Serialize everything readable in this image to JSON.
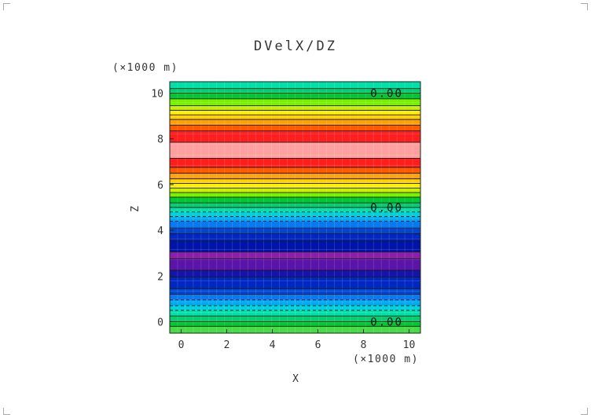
{
  "chart_data": {
    "type": "heatmap",
    "title": "DVelX/DZ",
    "xlabel": "X",
    "ylabel": "Z",
    "x_unit": "(×1000 m)",
    "y_unit": "(×1000 m)",
    "xlim": [
      -0.5,
      10.5
    ],
    "ylim": [
      -0.5,
      10.5
    ],
    "xticks": [
      "0",
      "2",
      "4",
      "6",
      "8",
      "10"
    ],
    "yticks": [
      "0",
      "2",
      "4",
      "6",
      "8",
      "10"
    ],
    "grid": true,
    "contour_labels": [
      {
        "text": "0.00",
        "x": 8.3,
        "y": 10.0
      },
      {
        "text": "0.00",
        "x": 8.3,
        "y": 5.0
      },
      {
        "text": "0.00",
        "x": 8.3,
        "y": 0.0
      }
    ],
    "bands": [
      {
        "z0": -0.5,
        "z1": -0.2,
        "color": "#46dc46"
      },
      {
        "z0": -0.2,
        "z1": 0.0,
        "color": "#00c832"
      },
      {
        "z0": 0.0,
        "z1": 0.25,
        "color": "#00d070"
      },
      {
        "z0": 0.25,
        "z1": 0.5,
        "color": "#00e0a8"
      },
      {
        "z0": 0.5,
        "z1": 0.7,
        "color": "#00d2dc"
      },
      {
        "z0": 0.7,
        "z1": 0.95,
        "color": "#00aaf0"
      },
      {
        "z0": 0.95,
        "z1": 1.2,
        "color": "#0a78f0"
      },
      {
        "z0": 1.2,
        "z1": 1.45,
        "color": "#0046d2"
      },
      {
        "z0": 1.45,
        "z1": 1.95,
        "color": "#0028c0"
      },
      {
        "z0": 1.95,
        "z1": 2.25,
        "color": "#1414aa"
      },
      {
        "z0": 2.25,
        "z1": 2.75,
        "color": "#5a14aa"
      },
      {
        "z0": 2.75,
        "z1": 3.05,
        "color": "#8c1eaa"
      },
      {
        "z0": 3.05,
        "z1": 3.55,
        "color": "#0014aa"
      },
      {
        "z0": 3.55,
        "z1": 3.85,
        "color": "#0028c0"
      },
      {
        "z0": 3.85,
        "z1": 4.1,
        "color": "#0046d2"
      },
      {
        "z0": 4.1,
        "z1": 4.4,
        "color": "#0a78f0"
      },
      {
        "z0": 4.4,
        "z1": 4.6,
        "color": "#00aaf0"
      },
      {
        "z0": 4.6,
        "z1": 4.8,
        "color": "#00d2dc"
      },
      {
        "z0": 4.8,
        "z1": 5.0,
        "color": "#00e0a8"
      },
      {
        "z0": 5.0,
        "z1": 5.2,
        "color": "#00d070"
      },
      {
        "z0": 5.2,
        "z1": 5.45,
        "color": "#00c832"
      },
      {
        "z0": 5.45,
        "z1": 5.65,
        "color": "#78f000"
      },
      {
        "z0": 5.65,
        "z1": 5.85,
        "color": "#c8f000"
      },
      {
        "z0": 5.85,
        "z1": 6.05,
        "color": "#fff000"
      },
      {
        "z0": 6.05,
        "z1": 6.25,
        "color": "#ffd200"
      },
      {
        "z0": 6.25,
        "z1": 6.5,
        "color": "#ffa000"
      },
      {
        "z0": 6.5,
        "z1": 6.75,
        "color": "#ff5a00"
      },
      {
        "z0": 6.75,
        "z1": 7.15,
        "color": "#ff1e1e"
      },
      {
        "z0": 7.15,
        "z1": 7.85,
        "color": "#ffa0a0"
      },
      {
        "z0": 7.85,
        "z1": 8.35,
        "color": "#ff1e1e"
      },
      {
        "z0": 8.35,
        "z1": 8.6,
        "color": "#ff5a00"
      },
      {
        "z0": 8.6,
        "z1": 8.85,
        "color": "#ffa000"
      },
      {
        "z0": 8.85,
        "z1": 9.05,
        "color": "#ffd200"
      },
      {
        "z0": 9.05,
        "z1": 9.25,
        "color": "#fff000"
      },
      {
        "z0": 9.25,
        "z1": 9.45,
        "color": "#c8f000"
      },
      {
        "z0": 9.45,
        "z1": 9.75,
        "color": "#78f000"
      },
      {
        "z0": 9.75,
        "z1": 10.0,
        "color": "#00c832"
      },
      {
        "z0": 10.0,
        "z1": 10.2,
        "color": "#00d070"
      },
      {
        "z0": 10.2,
        "z1": 10.5,
        "color": "#00e0a8"
      }
    ],
    "contour_levels_z": [
      -0.2,
      0.0,
      0.25,
      0.5,
      0.7,
      0.95,
      1.2,
      1.45,
      1.95,
      2.25,
      2.75,
      3.05,
      3.55,
      3.85,
      4.1,
      4.4,
      4.6,
      4.8,
      5.0,
      5.2,
      5.45,
      5.65,
      5.85,
      6.05,
      6.25,
      6.5,
      6.75,
      7.15,
      7.85,
      8.35,
      8.6,
      8.85,
      9.05,
      9.25,
      9.45,
      9.75,
      10.0,
      10.2
    ],
    "dashed_levels_z": [
      0.5,
      0.7,
      0.95,
      4.4,
      4.6,
      4.8
    ]
  }
}
